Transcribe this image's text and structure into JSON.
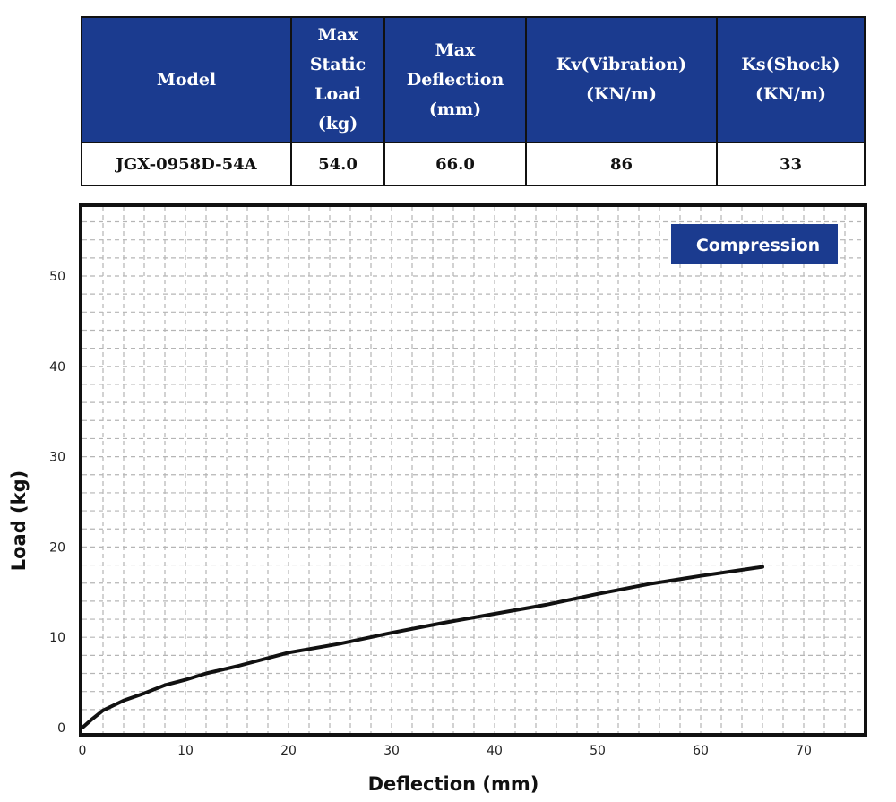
{
  "spec_table": {
    "headers": [
      "Model",
      "Max Static Load (kg)",
      "Max Deflection (mm)",
      "Kv(Vibration) (KN/m)",
      "Ks(Shock) (KN/m)"
    ],
    "row": {
      "model": "JGX-0958D-54A",
      "max_static_load": "54.0",
      "max_deflection": "66.0",
      "kv": "86",
      "ks": "33"
    },
    "header_color": "#1b3b8f"
  },
  "chart_data": {
    "type": "line",
    "title": "",
    "xlabel": "Deflection (mm)",
    "ylabel": "Load (kg)",
    "xlim": [
      0,
      75
    ],
    "ylim": [
      0,
      58
    ],
    "x_ticks": [
      0,
      10,
      20,
      30,
      40,
      50,
      60,
      70
    ],
    "y_ticks": [
      0,
      10,
      20,
      30,
      40,
      50
    ],
    "grid": true,
    "legend": {
      "label": "Compression",
      "placement": "top-right",
      "color": "#1b3b8f"
    },
    "series": [
      {
        "name": "Compression",
        "color": "#111111",
        "points": [
          [
            0,
            0
          ],
          [
            1,
            1.0
          ],
          [
            2,
            1.9
          ],
          [
            4,
            3.0
          ],
          [
            6,
            3.8
          ],
          [
            8,
            4.7
          ],
          [
            10,
            5.3
          ],
          [
            12,
            6.0
          ],
          [
            15,
            6.8
          ],
          [
            20,
            8.3
          ],
          [
            25,
            9.3
          ],
          [
            30,
            10.5
          ],
          [
            35,
            11.6
          ],
          [
            40,
            12.6
          ],
          [
            45,
            13.6
          ],
          [
            50,
            14.8
          ],
          [
            55,
            15.9
          ],
          [
            60,
            16.8
          ],
          [
            66,
            17.8
          ]
        ]
      }
    ]
  }
}
